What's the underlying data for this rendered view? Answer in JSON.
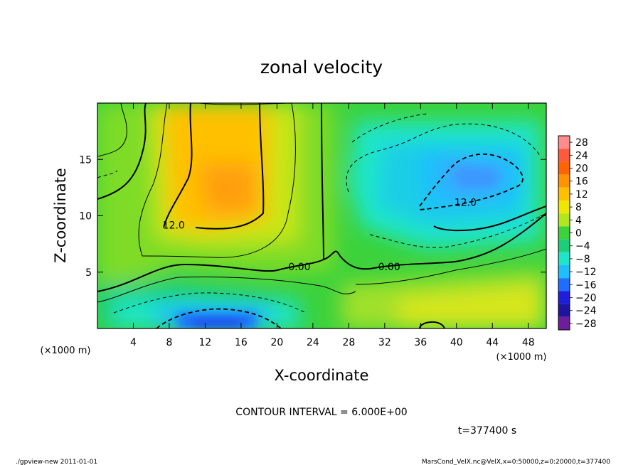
{
  "chart_data": {
    "type": "heatmap",
    "title": "zonal velocity",
    "xlabel": "X-coordinate",
    "ylabel": "Z-coordinate",
    "x_unit_label": "(×1000 m)",
    "y_unit_label": "(×1000 m)",
    "xlim": [
      0,
      50
    ],
    "ylim": [
      0,
      20
    ],
    "x_ticks": [
      4,
      8,
      12,
      16,
      20,
      24,
      28,
      32,
      36,
      40,
      44,
      48
    ],
    "y_ticks": [
      5,
      10,
      15
    ],
    "colorbar": {
      "levels": [
        28,
        24,
        20,
        16,
        12,
        8,
        4,
        0,
        -4,
        -8,
        -12,
        -16,
        -20,
        -24,
        -28
      ],
      "labels": [
        "28",
        "24",
        "20",
        "16",
        "12",
        "8",
        "4",
        "0",
        "−4",
        "−8",
        "−12",
        "−16",
        "−20",
        "−24",
        "−28"
      ],
      "colors": [
        "#ff8c8c",
        "#ff5a3c",
        "#ff6400",
        "#ff9400",
        "#ffc000",
        "#f0e600",
        "#b4e61e",
        "#3cd23c",
        "#1ecd78",
        "#1ee6c8",
        "#1ebeff",
        "#1e6eff",
        "#1e1edc",
        "#1e14a0",
        "#6e1e9b"
      ]
    },
    "contour_interval": "CONTOUR INTERVAL = 6.000E+00",
    "contour_labels": [
      {
        "text": "12.0",
        "x": 8.5,
        "z": 9.0
      },
      {
        "text": "0.00",
        "x": 22.5,
        "z": 5.3
      },
      {
        "text": "0.00",
        "x": 32.5,
        "z": 5.3
      },
      {
        "text": "12.0",
        "x": 41.0,
        "z": 11.0
      }
    ],
    "field_features": [
      {
        "kind": "max",
        "x": 14,
        "z": 12,
        "value": 18
      },
      {
        "kind": "min",
        "x": 14,
        "z": 0.5,
        "value": -20
      },
      {
        "kind": "min",
        "x": 42,
        "z": 13,
        "value": -14
      }
    ],
    "time_label": "t=377400 s"
  },
  "footer": {
    "left": "./gpview-new  2011-01-01",
    "right": "MarsCond_VelX.nc@VelX,x=0:50000,z=0:20000,t=377400"
  }
}
